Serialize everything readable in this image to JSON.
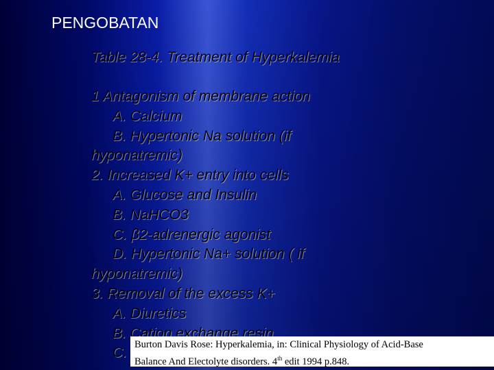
{
  "header": {
    "title": "PENGOBATAN"
  },
  "slide": {
    "subtitle": "Table 28-4. Treatment of Hyperkalemia",
    "lines": [
      "1 Antagonism of membrane action",
      "A. Calcium",
      "B. Hypertonic Na solution (if",
      "hyponatremic)",
      "2. Increased K+ entry into cells",
      "A. Glucose and Insulin",
      "B. NaHCO3",
      "C. β2-adrenergic agonist",
      "D. Hypertonic Na+ solution ( if",
      "hyponatremic)",
      "3. Removal of the excess K+",
      "A. Diuretics",
      "B. Cation exchange resin",
      "C."
    ]
  },
  "citation": {
    "line1": "Burton Davis Rose: Hyperkalemia, in: Clinical Physiology of Acid-Base",
    "line2_pre": "Balance And Electolyte disorders. 4",
    "line2_sup": "th",
    "line2_post": " edit 1994  p.848."
  }
}
